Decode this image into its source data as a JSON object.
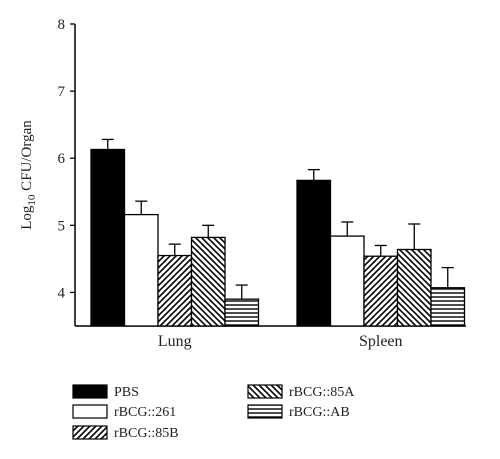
{
  "chart_data": {
    "type": "bar",
    "categories": [
      "Lung",
      "Spleen"
    ],
    "ylabel_main": "Log",
    "ylabel_sub": "10",
    "ylabel_rest": " CFU/Organ",
    "ylim": [
      3.5,
      8
    ],
    "yticks": [
      4,
      5,
      6,
      7,
      8
    ],
    "series": [
      {
        "name": "PBS",
        "values": [
          6.13,
          5.67
        ],
        "errors": [
          0.15,
          0.16
        ],
        "pattern": "solid"
      },
      {
        "name": "rBCG::261",
        "values": [
          5.16,
          4.84
        ],
        "errors": [
          0.2,
          0.21
        ],
        "pattern": "empty"
      },
      {
        "name": "rBCG::85B",
        "values": [
          4.55,
          4.54
        ],
        "errors": [
          0.17,
          0.16
        ],
        "pattern": "diag-right"
      },
      {
        "name": "rBCG::85A",
        "values": [
          4.82,
          4.64
        ],
        "errors": [
          0.18,
          0.38
        ],
        "pattern": "diag-left"
      },
      {
        "name": "rBCG::AB",
        "values": [
          3.9,
          4.07
        ],
        "errors": [
          0.21,
          0.3
        ],
        "pattern": "horizontal"
      }
    ],
    "grid": false,
    "legend_position": "bottom"
  }
}
